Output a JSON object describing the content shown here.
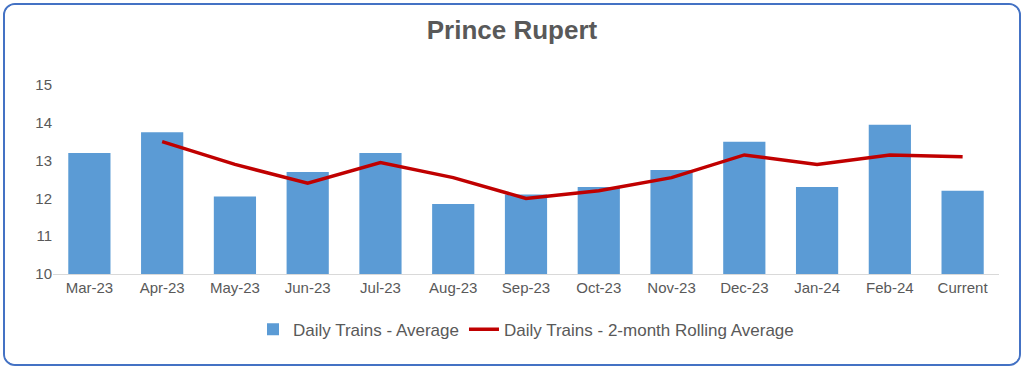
{
  "chart_data": {
    "type": "bar",
    "title": "Prince Rupert",
    "categories": [
      "Mar-23",
      "Apr-23",
      "May-23",
      "Jun-23",
      "Jul-23",
      "Aug-23",
      "Sep-23",
      "Oct-23",
      "Nov-23",
      "Dec-23",
      "Jan-24",
      "Feb-24",
      "Current"
    ],
    "series": [
      {
        "name": "Daily Trains - Average",
        "type": "bar",
        "color": "#5b9bd5",
        "values": [
          13.2,
          13.75,
          12.05,
          12.7,
          13.2,
          11.85,
          12.1,
          12.3,
          12.75,
          13.5,
          12.3,
          13.95,
          12.2
        ]
      },
      {
        "name": "Daily Trains - 2-month Rolling Average",
        "type": "line",
        "color": "#c00000",
        "values": [
          null,
          13.5,
          12.9,
          12.4,
          12.95,
          12.55,
          12.0,
          12.2,
          12.55,
          13.15,
          12.9,
          13.15,
          13.1
        ]
      }
    ],
    "ylim": [
      10,
      15
    ],
    "yticks": [
      10,
      11,
      12,
      13,
      14,
      15
    ],
    "grid": false,
    "legend": "bottom"
  }
}
